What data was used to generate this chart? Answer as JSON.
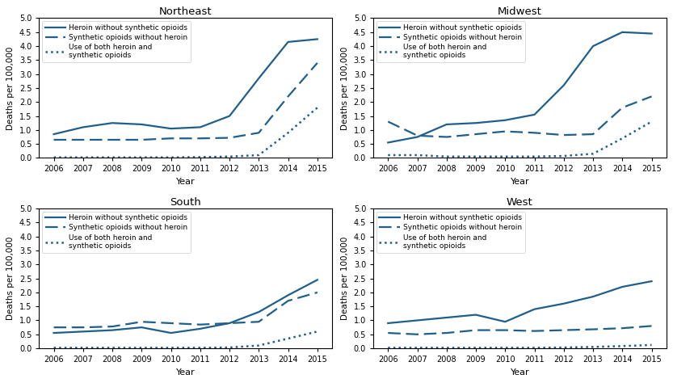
{
  "years": [
    2006,
    2007,
    2008,
    2009,
    2010,
    2011,
    2012,
    2013,
    2014,
    2015
  ],
  "regions": [
    "Northeast",
    "Midwest",
    "South",
    "West"
  ],
  "line_color": "#1f5f8b",
  "data": {
    "Northeast": {
      "heroin": [
        0.85,
        1.1,
        1.25,
        1.2,
        1.05,
        1.1,
        1.5,
        2.85,
        4.15,
        4.25
      ],
      "synthetic": [
        0.65,
        0.65,
        0.65,
        0.65,
        0.7,
        0.7,
        0.72,
        0.9,
        2.2,
        3.4
      ],
      "both": [
        0.02,
        0.02,
        0.02,
        0.02,
        0.02,
        0.03,
        0.05,
        0.1,
        0.9,
        1.8
      ]
    },
    "Midwest": {
      "heroin": [
        0.55,
        0.75,
        1.2,
        1.25,
        1.35,
        1.55,
        2.6,
        4.0,
        4.5,
        4.45
      ],
      "synthetic": [
        1.3,
        0.8,
        0.75,
        0.85,
        0.95,
        0.9,
        0.82,
        0.85,
        1.8,
        2.2
      ],
      "both": [
        0.1,
        0.1,
        0.05,
        0.05,
        0.05,
        0.05,
        0.07,
        0.15,
        0.7,
        1.3
      ]
    },
    "South": {
      "heroin": [
        0.55,
        0.6,
        0.65,
        0.75,
        0.55,
        0.7,
        0.9,
        1.3,
        1.9,
        2.45
      ],
      "synthetic": [
        0.75,
        0.75,
        0.78,
        0.95,
        0.9,
        0.85,
        0.9,
        0.95,
        1.7,
        2.0
      ],
      "both": [
        0.02,
        0.02,
        0.02,
        0.02,
        0.02,
        0.02,
        0.03,
        0.1,
        0.35,
        0.6
      ]
    },
    "West": {
      "heroin": [
        0.9,
        1.0,
        1.1,
        1.2,
        0.95,
        1.4,
        1.6,
        1.85,
        2.2,
        2.4
      ],
      "synthetic": [
        0.55,
        0.5,
        0.55,
        0.65,
        0.65,
        0.62,
        0.65,
        0.68,
        0.72,
        0.8
      ],
      "both": [
        0.02,
        0.02,
        0.02,
        0.02,
        0.02,
        0.02,
        0.03,
        0.05,
        0.08,
        0.12
      ]
    }
  },
  "legend_labels": [
    "Heroin without synthetic opioids",
    "Synthetic opioids without heroin",
    "Use of both heroin and\nsynthetic opioids"
  ],
  "ylabel": "Deaths per 100,000",
  "xlabel": "Year",
  "ylim": [
    0,
    5.0
  ],
  "yticks": [
    0,
    0.5,
    1.0,
    1.5,
    2.0,
    2.5,
    3.0,
    3.5,
    4.0,
    4.5,
    5.0
  ],
  "figsize": [
    8.33,
    4.74
  ],
  "dpi": 100
}
